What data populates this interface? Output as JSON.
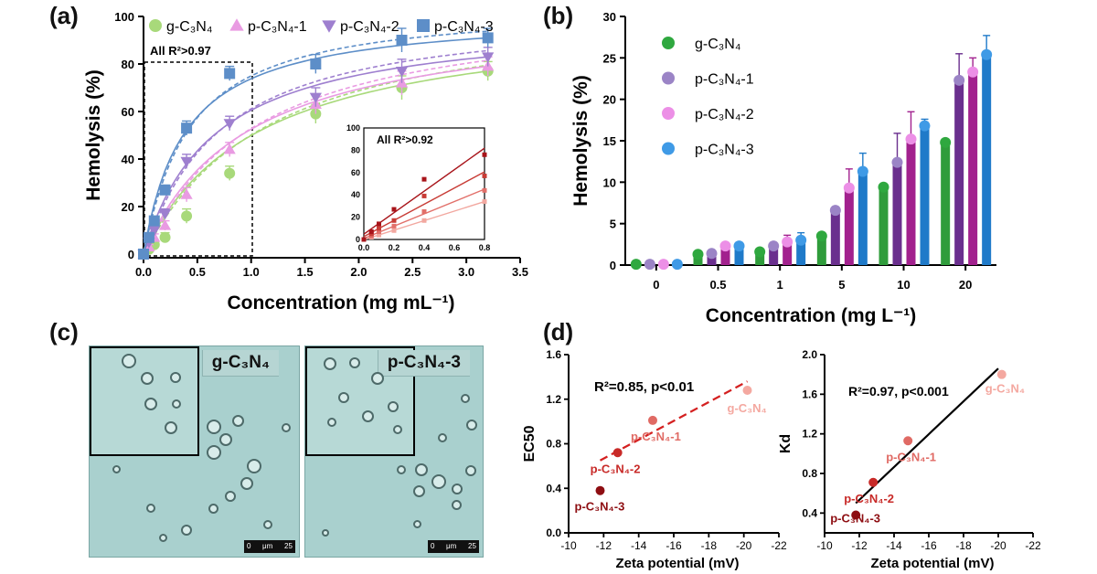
{
  "panels": {
    "a": "(a)",
    "b": "(b)",
    "c": "(c)",
    "d": "(d)"
  },
  "chart_data": [
    {
      "id": "a",
      "type": "scatter",
      "xlabel": "Concentration (mg mL⁻¹)",
      "ylabel": "Hemolysis (%)",
      "xlim": [
        0,
        3.5
      ],
      "ylim": [
        0,
        100
      ],
      "xticks": [
        0,
        0.5,
        1.0,
        1.5,
        2.0,
        2.5,
        3.0,
        3.5
      ],
      "yticks": [
        0,
        20,
        40,
        60,
        80,
        100
      ],
      "annotation": "All R²>0.97",
      "x": [
        0,
        0.05,
        0.1,
        0.2,
        0.4,
        0.8,
        1.6,
        2.4,
        3.2
      ],
      "series": [
        {
          "name": "g-C₃N₄",
          "color": "#a8d97a",
          "marker": "circle",
          "values": [
            0,
            2,
            4,
            7,
            16,
            34,
            59,
            70,
            77
          ]
        },
        {
          "name": "p-C₃N₄-1",
          "color": "#e99be2",
          "marker": "triangle-up",
          "values": [
            0,
            3,
            7,
            12,
            25,
            44,
            63,
            72,
            79
          ]
        },
        {
          "name": "p-C₃N₄-2",
          "color": "#9e7fcf",
          "marker": "triangle-down",
          "values": [
            0,
            5,
            10,
            17,
            39,
            55,
            66,
            77,
            83
          ]
        },
        {
          "name": "p-C₃N₄-3",
          "color": "#5d8ec8",
          "marker": "square",
          "values": [
            0,
            7,
            14,
            27,
            53,
            76,
            80,
            90,
            91
          ]
        }
      ],
      "inset": {
        "annotation": "All R²>0.92",
        "xlim": [
          0,
          0.8
        ],
        "ylim": [
          0,
          100
        ],
        "xticks": [
          0.0,
          0.2,
          0.4,
          0.6,
          0.8
        ],
        "yticks": [
          0,
          20,
          40,
          60,
          80,
          100
        ],
        "x": [
          0,
          0.05,
          0.1,
          0.2,
          0.4,
          0.8
        ],
        "series": [
          {
            "color": "#f2a8a0",
            "values": [
              0,
              2,
              4,
              8,
              17,
              34
            ]
          },
          {
            "color": "#e2706a",
            "values": [
              0,
              3,
              7,
              12,
              25,
              44
            ]
          },
          {
            "color": "#c83c36",
            "values": [
              0,
              5,
              10,
              17,
              39,
              57
            ]
          },
          {
            "color": "#a8141a",
            "values": [
              0,
              7,
              14,
              27,
              54,
              76
            ]
          }
        ]
      }
    },
    {
      "id": "b",
      "type": "bar",
      "xlabel": "Concentration (mg L⁻¹)",
      "ylabel": "Hemolysis  (%)",
      "ylim": [
        0,
        30
      ],
      "yticks": [
        0,
        5,
        10,
        15,
        20,
        25,
        30
      ],
      "categories": [
        "0",
        "0.5",
        "1",
        "5",
        "10",
        "20"
      ],
      "series": [
        {
          "name": "g-C₃N₄",
          "color": "#2fa83f",
          "values": [
            0.1,
            1.3,
            1.6,
            3.5,
            9.4,
            14.8
          ],
          "errors": [
            0,
            0,
            0,
            0,
            0,
            0
          ]
        },
        {
          "name": "p-C₃N₄-1",
          "color": "#9b84c6",
          "values": [
            0.1,
            1.4,
            2.3,
            6.6,
            12.4,
            22.3
          ],
          "errors": [
            0,
            0,
            0.4,
            0,
            3.5,
            3.2
          ]
        },
        {
          "name": "p-C₃N₄-2",
          "color": "#ec8fe6",
          "values": [
            0.1,
            2.3,
            2.8,
            9.3,
            15.2,
            23.3
          ],
          "errors": [
            0,
            0,
            0.8,
            2.3,
            3.3,
            1.7
          ]
        },
        {
          "name": "p-C₃N₄-3",
          "color": "#3f9ae6",
          "values": [
            0.1,
            2.3,
            3.0,
            11.3,
            16.8,
            25.4
          ],
          "errors": [
            0,
            0,
            0.9,
            2.2,
            0.8,
            2.3
          ]
        }
      ],
      "bar_colors": [
        "#2f9c3b",
        "#6a2f8e",
        "#a2218e",
        "#1f7ac9"
      ]
    },
    {
      "id": "d1",
      "type": "scatter",
      "xlabel": "Zeta potential (mV)",
      "ylabel": "EC50",
      "xlim": [
        -10,
        -22
      ],
      "ylim": [
        0,
        1.6
      ],
      "xticks": [
        -10,
        -12,
        -14,
        -16,
        -18,
        -20,
        -22
      ],
      "yticks": [
        0.0,
        0.4,
        0.8,
        1.2,
        1.6
      ],
      "annotation": "R²=0.85, p<0.01",
      "fit": {
        "x": [
          -11.8,
          -20.2
        ],
        "y": [
          0.65,
          1.36
        ],
        "style": "dashed",
        "color": "#d42020"
      },
      "points": [
        {
          "name": "g-C₃N₄",
          "x": -20.2,
          "y": 1.28,
          "color": "#f4a8a0"
        },
        {
          "name": "p-C₃N₄-1",
          "x": -14.8,
          "y": 1.01,
          "color": "#e06a64"
        },
        {
          "name": "p-C₃N₄-2",
          "x": -12.8,
          "y": 0.72,
          "color": "#c82a28"
        },
        {
          "name": "p-C₃N₄-3",
          "x": -11.8,
          "y": 0.38,
          "color": "#8e0e12"
        }
      ]
    },
    {
      "id": "d2",
      "type": "scatter",
      "xlabel": "Zeta potential (mV)",
      "ylabel": "Kd",
      "xlim": [
        -10,
        -22
      ],
      "ylim": [
        0.2,
        2.0
      ],
      "xticks": [
        -10,
        -12,
        -14,
        -16,
        -18,
        -20,
        -22
      ],
      "yticks": [
        0.4,
        0.8,
        1.2,
        1.6,
        2.0
      ],
      "annotation": "R²=0.97, p<0.001",
      "fit": {
        "x": [
          -11.8,
          -20.0
        ],
        "y": [
          0.5,
          1.86
        ],
        "style": "solid",
        "color": "#000000"
      },
      "points": [
        {
          "name": "g-C₃N₄",
          "x": -20.2,
          "y": 1.8,
          "color": "#f4a8a0"
        },
        {
          "name": "p-C₃N₄-1",
          "x": -14.8,
          "y": 1.13,
          "color": "#e06a64"
        },
        {
          "name": "p-C₃N₄-2",
          "x": -12.8,
          "y": 0.71,
          "color": "#c82a28"
        },
        {
          "name": "p-C₃N₄-3",
          "x": -11.8,
          "y": 0.38,
          "color": "#8e0e12"
        }
      ]
    }
  ],
  "micrographs": [
    {
      "label": "g-C₃N₄",
      "scale": [
        "0",
        "μm",
        "25"
      ]
    },
    {
      "label": "p-C₃N₄-3",
      "scale": [
        "0",
        "μm",
        "25"
      ]
    }
  ]
}
